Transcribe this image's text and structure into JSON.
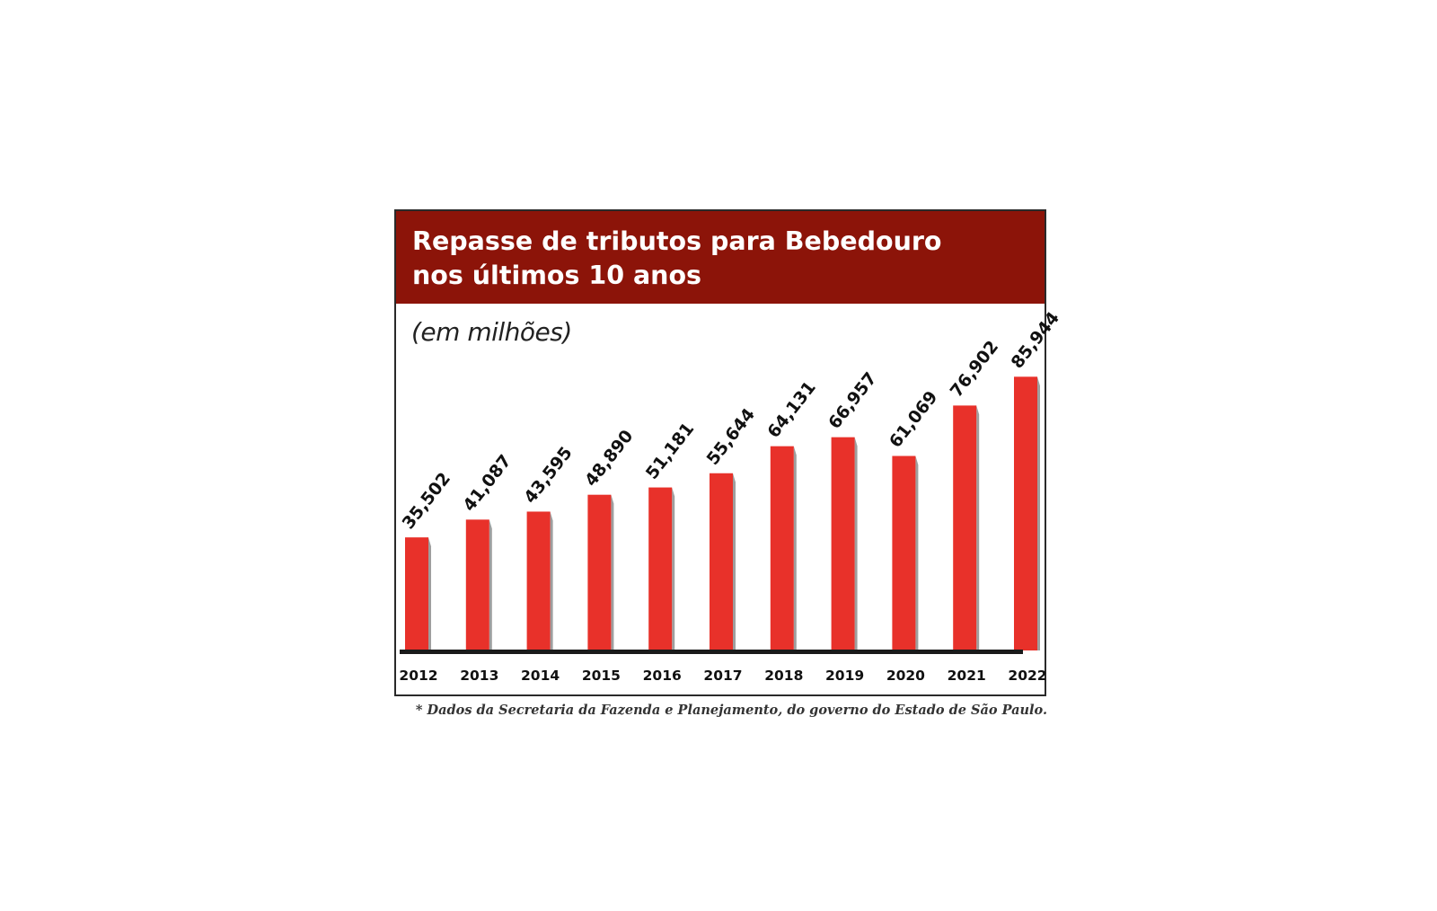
{
  "chart_data": {
    "type": "bar",
    "title": "Repasse de tributos para Bebedouro nos últimos 10 anos",
    "title_lines": [
      "Repasse de tributos para Bebedouro",
      "nos últimos 10 anos"
    ],
    "subtitle": "(em milhões)",
    "categories": [
      "2012",
      "2013",
      "2014",
      "2015",
      "2016",
      "2017",
      "2018",
      "2019",
      "2020",
      "2021",
      "2022"
    ],
    "values": [
      35.502,
      41.087,
      43.595,
      48.89,
      51.181,
      55.644,
      64.131,
      66.957,
      61.069,
      76.902,
      85.944
    ],
    "value_labels": [
      "35,502",
      "41,087",
      "43,595",
      "48,890",
      "51,181",
      "55,644",
      "64,131",
      "66,957",
      "61,069",
      "76,902",
      "85,944"
    ],
    "ylim": [
      0,
      100
    ],
    "grid": false,
    "legend": "none",
    "footnote": "* Dados da Secretaria da Fazenda e Planejamento, do governo do Estado de São Paulo.",
    "colors": {
      "header": "#8c1409",
      "bar": "#e8312a",
      "bar_shadow": "#9e9e9e",
      "baseline": "#1a1a1a"
    }
  }
}
